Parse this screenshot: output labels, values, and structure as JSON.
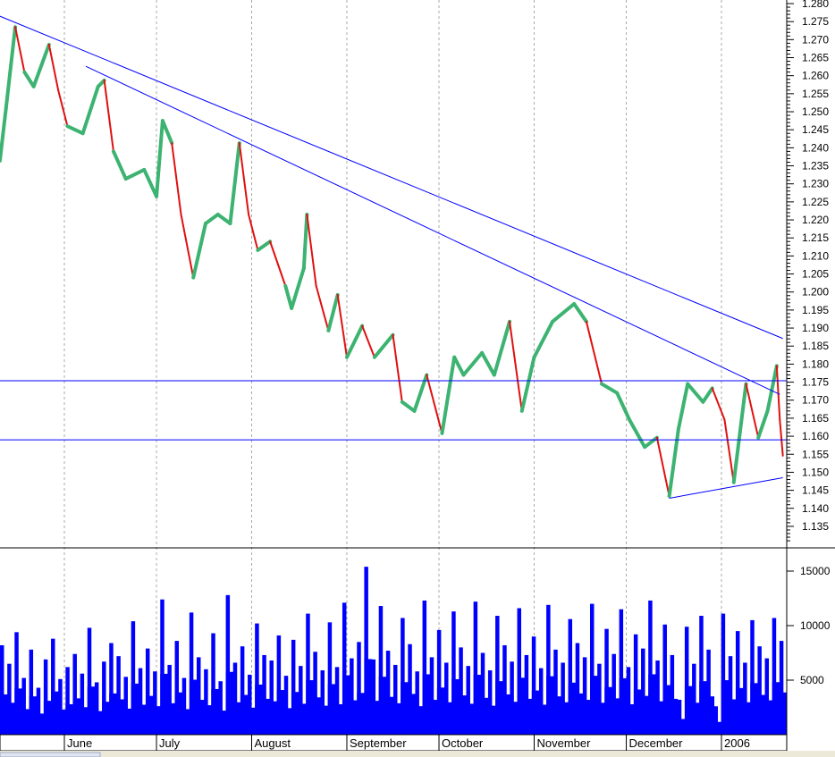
{
  "chart_data": [
    {
      "type": "line",
      "title": "",
      "xlabel": "",
      "ylabel": "",
      "ylim": [
        1.132,
        1.281
      ],
      "y_ticks": [
        "1.280",
        "1.275",
        "1.270",
        "1.265",
        "1.260",
        "1.255",
        "1.250",
        "1.245",
        "1.240",
        "1.235",
        "1.230",
        "1.225",
        "1.220",
        "1.215",
        "1.210",
        "1.205",
        "1.200",
        "1.195",
        "1.190",
        "1.185",
        "1.180",
        "1.175",
        "1.170",
        "1.165",
        "1.160",
        "1.155",
        "1.150",
        "1.145",
        "1.140",
        "1.135"
      ],
      "x_ticks": [
        {
          "date": "2005-06-01",
          "label": "June"
        },
        {
          "date": "2005-07-01",
          "label": "July"
        },
        {
          "date": "2005-08-01",
          "label": "August"
        },
        {
          "date": "2005-09-01",
          "label": "September"
        },
        {
          "date": "2005-10-01",
          "label": "October"
        },
        {
          "date": "2005-11-01",
          "label": "November"
        },
        {
          "date": "2005-12-01",
          "label": "December"
        },
        {
          "date": "2006-01-01",
          "label": "2006"
        }
      ],
      "grid": "vertical dashed at month ticks",
      "colors": {
        "up": "#3cb371",
        "down": "#e01010",
        "trendline": "#0000ff"
      },
      "series": [
        {
          "points": [
            [
              "2005-05-11",
              1.2364
            ],
            [
              "2005-05-13",
              1.251
            ],
            [
              "2005-05-16",
              1.2735
            ],
            [
              "2005-05-19",
              1.261
            ],
            [
              "2005-05-22",
              1.257
            ],
            [
              "2005-05-27",
              1.2686
            ],
            [
              "2005-05-30",
              1.256
            ],
            [
              "2005-06-02",
              1.246
            ],
            [
              "2005-06-07",
              1.244
            ],
            [
              "2005-06-12",
              1.257
            ],
            [
              "2005-06-14",
              1.2587
            ],
            [
              "2005-06-17",
              1.239
            ],
            [
              "2005-06-21",
              1.2314
            ],
            [
              "2005-06-27",
              1.2339
            ],
            [
              "2005-07-01",
              1.2265
            ],
            [
              "2005-07-03",
              1.2475
            ],
            [
              "2005-07-06",
              1.2413
            ],
            [
              "2005-07-09",
              1.2215
            ],
            [
              "2005-07-13",
              1.204
            ],
            [
              "2005-07-17",
              1.219
            ],
            [
              "2005-07-21",
              1.2215
            ],
            [
              "2005-07-25",
              1.219
            ],
            [
              "2005-07-28",
              1.2413
            ],
            [
              "2005-07-31",
              1.2215
            ],
            [
              "2005-08-03",
              1.2116
            ],
            [
              "2005-08-07",
              1.214
            ],
            [
              "2005-08-12",
              1.2017
            ],
            [
              "2005-08-14",
              1.1955
            ],
            [
              "2005-08-18",
              1.2066
            ],
            [
              "2005-08-19",
              1.2215
            ],
            [
              "2005-08-22",
              1.2017
            ],
            [
              "2005-08-26",
              1.1893
            ],
            [
              "2005-08-29",
              1.1992
            ],
            [
              "2005-09-01",
              1.1819
            ],
            [
              "2005-09-06",
              1.1906
            ],
            [
              "2005-09-10",
              1.1819
            ],
            [
              "2005-09-16",
              1.1881
            ],
            [
              "2005-09-19",
              1.1695
            ],
            [
              "2005-09-23",
              1.167
            ],
            [
              "2005-09-27",
              1.177
            ],
            [
              "2005-10-02",
              1.1608
            ],
            [
              "2005-10-06",
              1.1819
            ],
            [
              "2005-10-09",
              1.177
            ],
            [
              "2005-10-15",
              1.1831
            ],
            [
              "2005-10-19",
              1.177
            ],
            [
              "2005-10-24",
              1.1918
            ],
            [
              "2005-10-28",
              1.167
            ],
            [
              "2005-11-01",
              1.1819
            ],
            [
              "2005-11-07",
              1.1918
            ],
            [
              "2005-11-14",
              1.1967
            ],
            [
              "2005-11-18",
              1.1918
            ],
            [
              "2005-11-23",
              1.1745
            ],
            [
              "2005-11-28",
              1.172
            ],
            [
              "2005-12-02",
              1.1646
            ],
            [
              "2005-12-07",
              1.157
            ],
            [
              "2005-12-11",
              1.1596
            ],
            [
              "2005-12-15",
              1.1434
            ],
            [
              "2005-12-18",
              1.162
            ],
            [
              "2005-12-21",
              1.1745
            ],
            [
              "2005-12-26",
              1.1695
            ],
            [
              "2005-12-29",
              1.1733
            ],
            [
              "2006-01-02",
              1.1646
            ],
            [
              "2006-01-05",
              1.1472
            ],
            [
              "2006-01-09",
              1.1745
            ],
            [
              "2006-01-13",
              1.1596
            ],
            [
              "2006-01-16",
              1.167
            ],
            [
              "2006-01-19",
              1.1795
            ],
            [
              "2006-01-20",
              1.1646
            ],
            [
              "2006-01-21",
              1.1546
            ]
          ]
        }
      ],
      "trendlines": [
        {
          "from": [
            "2005-05-11",
            1.2765
          ],
          "to": [
            "2006-01-21",
            1.1871
          ]
        },
        {
          "from": [
            "2005-06-08",
            1.2626
          ],
          "to": [
            "2006-01-20",
            1.1716
          ]
        },
        {
          "from": [
            "2005-12-15",
            1.1428
          ],
          "to": [
            "2006-01-21",
            1.1485
          ]
        }
      ],
      "horizontal_lines": [
        1.1754,
        1.159
      ]
    },
    {
      "type": "bar",
      "title": "",
      "ylim": [
        0,
        16500
      ],
      "y_ticks": [
        "15000",
        "10000",
        "5000"
      ],
      "colors": {
        "bar": "#0000ff"
      },
      "values": [
        8200,
        6500,
        9400,
        5200,
        7800,
        4300,
        6900,
        8800,
        5100,
        6200,
        7400,
        5600,
        9800,
        4800,
        6700,
        8400,
        7200,
        5300,
        10400,
        6100,
        7900,
        5800,
        12400,
        6400,
        8600,
        5200,
        11200,
        7100,
        6000,
        9300,
        4900,
        12800,
        6600,
        8100,
        5500,
        10200,
        7300,
        6800,
        9100,
        5400,
        8700,
        6300,
        11100,
        7600,
        5900,
        10300,
        6200,
        12100,
        7000,
        8500,
        15400,
        6900,
        11800,
        7700,
        6400,
        10700,
        8300,
        5800,
        12300,
        7100,
        9600,
        6600,
        11300,
        8000,
        6300,
        12200,
        7500,
        5900,
        10900,
        8200,
        6700,
        11600,
        7300,
        9000,
        6100,
        11900,
        7800,
        6600,
        10600,
        8400,
        7100,
        12000,
        6500,
        9700,
        7400,
        11500,
        6200,
        9200,
        7900,
        12300,
        6800,
        10100,
        7300,
        3200,
        9900,
        6500,
        10900,
        7800,
        2600,
        11100,
        7200,
        9500,
        6600,
        10500,
        8100,
        7000,
        10700,
        8600
      ]
    }
  ]
}
